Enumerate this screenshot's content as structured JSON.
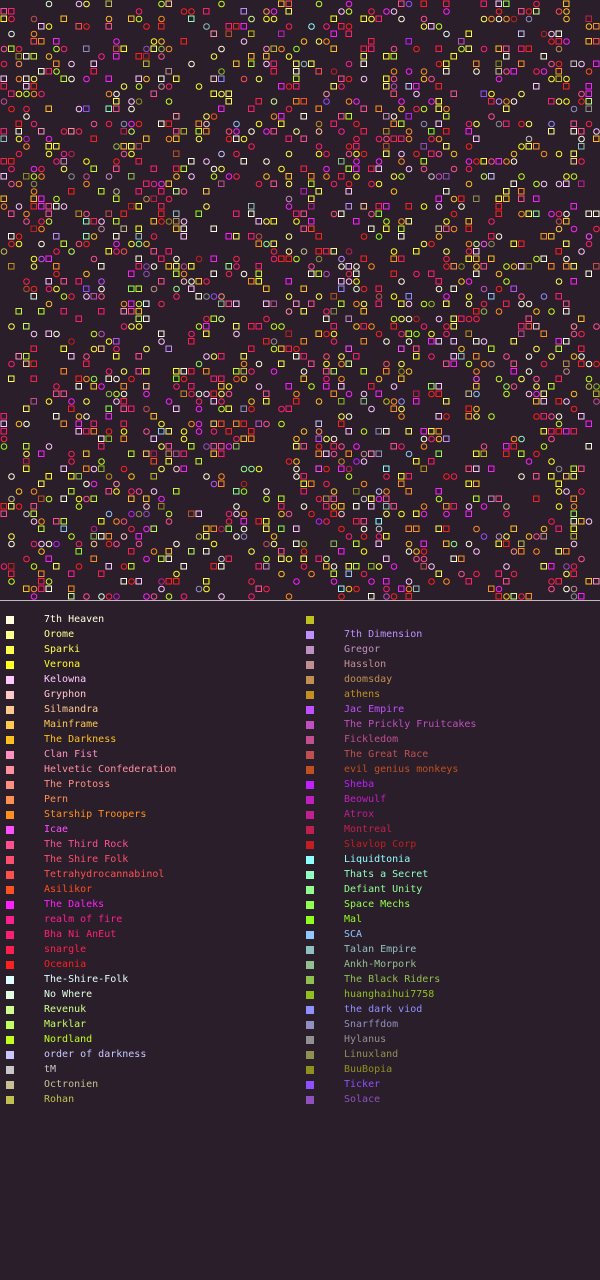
{
  "map": {
    "background": "#2a1e2a"
  },
  "legend": {
    "columns": [
      [
        {
          "name": "7th Heaven",
          "color": "#ffffe0"
        },
        {
          "name": "Orome",
          "color": "#ffff90"
        },
        {
          "name": "Sparki",
          "color": "#ffff50"
        },
        {
          "name": "Verona",
          "color": "#ffff20"
        },
        {
          "name": "Kelowna",
          "color": "#ffc8ff"
        },
        {
          "name": "Gryphon",
          "color": "#ffc8c8"
        },
        {
          "name": "Silmandra",
          "color": "#ffc890"
        },
        {
          "name": "Mainframe",
          "color": "#ffc850"
        },
        {
          "name": "The Darkness",
          "color": "#ffc020"
        },
        {
          "name": "Clan Fist",
          "color": "#ff90c0"
        },
        {
          "name": "Helvetic Confederation",
          "color": "#ff90a0"
        },
        {
          "name": "The Protoss",
          "color": "#ff9080"
        },
        {
          "name": "Pern",
          "color": "#ff9050"
        },
        {
          "name": "Starship Troopers",
          "color": "#ff9020"
        },
        {
          "name": "Icae",
          "color": "#ff50ff"
        },
        {
          "name": "The Third Rock",
          "color": "#ff5090"
        },
        {
          "name": "The Shire Folk",
          "color": "#ff5070"
        },
        {
          "name": "Tetrahydrocannabinol",
          "color": "#ff5050"
        },
        {
          "name": "Asilikor",
          "color": "#ff5020"
        },
        {
          "name": "The Daleks",
          "color": "#ff20ff"
        },
        {
          "name": "realm of fire",
          "color": "#ff2090"
        },
        {
          "name": "Bha Ni AnEut",
          "color": "#ff2070"
        },
        {
          "name": "snargle",
          "color": "#ff2050"
        },
        {
          "name": "Oceania",
          "color": "#ff2020"
        },
        {
          "name": "The-Shire-Folk",
          "color": "#e0ffff"
        },
        {
          "name": "No Where",
          "color": "#e0ffe0"
        },
        {
          "name": "Revenuk",
          "color": "#d0ff90"
        },
        {
          "name": "Marklar",
          "color": "#c0ff60"
        },
        {
          "name": "Nordland",
          "color": "#c0ff20"
        },
        {
          "name": "order of darkness",
          "color": "#c8c8ff"
        },
        {
          "name": "tM",
          "color": "#c8c8c8"
        },
        {
          "name": "Octronien",
          "color": "#c8c090"
        },
        {
          "name": "Rohan",
          "color": "#c0c050"
        }
      ],
      [
        {
          "name": "",
          "color": "#c0c020"
        },
        {
          "name": "7th Dimension",
          "color": "#c090ff"
        },
        {
          "name": "Gregor",
          "color": "#c090c0"
        },
        {
          "name": "Hasslon",
          "color": "#c09090"
        },
        {
          "name": "doomsday",
          "color": "#c09050"
        },
        {
          "name": "athens",
          "color": "#c09020"
        },
        {
          "name": "Jac Empire",
          "color": "#c050ff"
        },
        {
          "name": "The Prickly Fruitcakes",
          "color": "#c050c0"
        },
        {
          "name": "Fickledom",
          "color": "#c05090"
        },
        {
          "name": "The Great Race",
          "color": "#c05050"
        },
        {
          "name": "evil genius monkeys",
          "color": "#c05020"
        },
        {
          "name": "Sheba",
          "color": "#c020ff"
        },
        {
          "name": "Beowulf",
          "color": "#c020c0"
        },
        {
          "name": "Atrox",
          "color": "#c02090"
        },
        {
          "name": "Montreal",
          "color": "#c02050"
        },
        {
          "name": "Slavlop Corp",
          "color": "#c02020"
        },
        {
          "name": "Liquidtonia",
          "color": "#90ffff"
        },
        {
          "name": "Thats a Secret",
          "color": "#90ffc0"
        },
        {
          "name": "Defiant Unity",
          "color": "#90ff90"
        },
        {
          "name": "Space Mechs",
          "color": "#90ff50"
        },
        {
          "name": "Mal",
          "color": "#90ff20"
        },
        {
          "name": "SCA",
          "color": "#90c8ff"
        },
        {
          "name": "Talan Empire",
          "color": "#90c0c0"
        },
        {
          "name": "Ankh-Morpork",
          "color": "#90c090"
        },
        {
          "name": "The Black Riders",
          "color": "#90c050"
        },
        {
          "name": "huanghaihui7758",
          "color": "#90c020"
        },
        {
          "name": "the dark viod",
          "color": "#9090ff"
        },
        {
          "name": "Snarffdom",
          "color": "#9090c0"
        },
        {
          "name": "Hylanus",
          "color": "#909090"
        },
        {
          "name": "Linuxland",
          "color": "#909050"
        },
        {
          "name": "BuuBopia",
          "color": "#909020"
        },
        {
          "name": "Ticker",
          "color": "#9050ff"
        },
        {
          "name": "Solace",
          "color": "#9050c0"
        }
      ]
    ]
  }
}
